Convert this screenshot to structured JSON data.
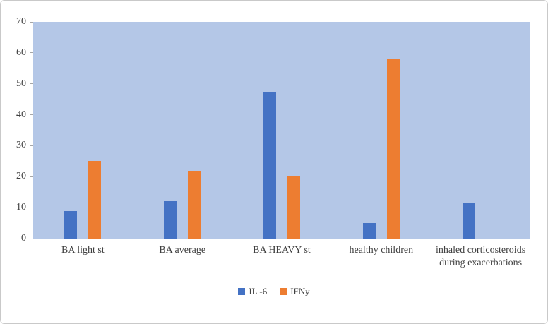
{
  "chart_data": {
    "type": "bar",
    "title": "",
    "xlabel": "",
    "ylabel": "",
    "categories": [
      "BA light st",
      "BA average",
      "BA HEAVY st",
      "healthy children",
      "inhaled corticosteroids during exacerbations"
    ],
    "series": [
      {
        "name": "IL -6",
        "color": "#4472c4",
        "values": [
          9,
          12,
          47.5,
          5,
          11.5
        ]
      },
      {
        "name": "IFNy",
        "color": "#ed7d31",
        "values": [
          25,
          22,
          20,
          58,
          0
        ]
      }
    ],
    "ylim": [
      0,
      70
    ],
    "ytick_step": 10,
    "yticks": [
      0,
      10,
      20,
      30,
      40,
      50,
      60,
      70
    ],
    "legend_position": "bottom",
    "plot_background": "#b4c7e7",
    "grid": "off"
  }
}
